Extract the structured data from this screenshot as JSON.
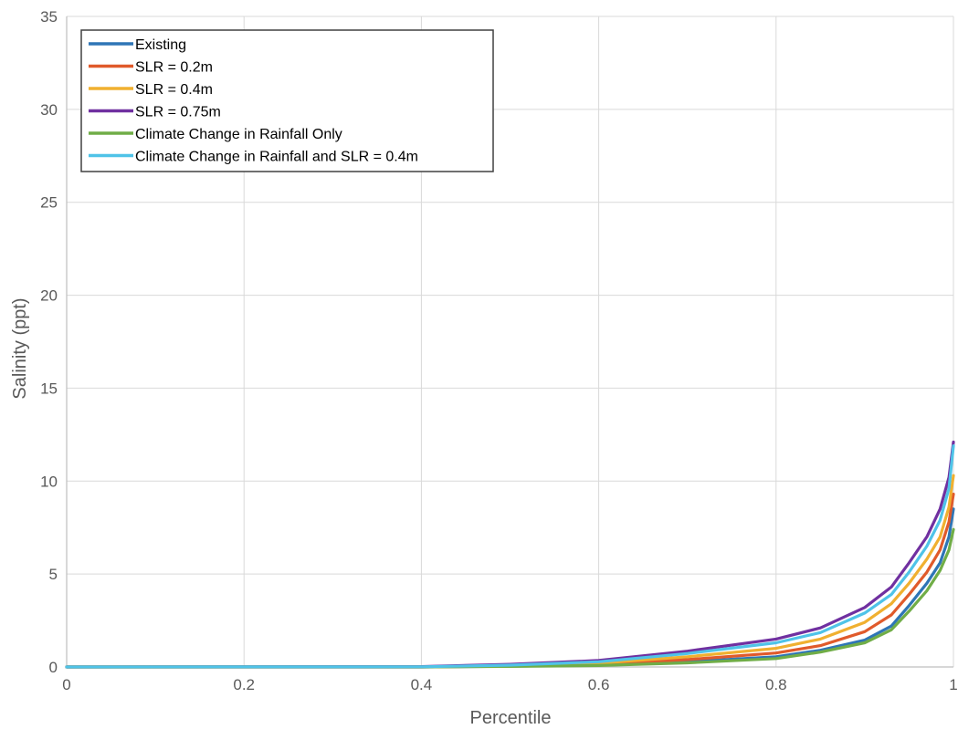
{
  "chart_data": {
    "type": "line",
    "title": "",
    "xlabel": "Percentile",
    "ylabel": "Salinity (ppt)",
    "xlim": [
      0,
      1
    ],
    "ylim": [
      0,
      35
    ],
    "x_ticks": [
      "0",
      "0.2",
      "0.4",
      "0.6",
      "0.8",
      "1"
    ],
    "y_ticks": [
      "0",
      "5",
      "10",
      "15",
      "20",
      "25",
      "30",
      "35"
    ],
    "grid": true,
    "legend_position": "top-left",
    "series": [
      {
        "name": "Existing",
        "color": "#2e75b6",
        "points": [
          [
            0,
            0
          ],
          [
            0.4,
            0
          ],
          [
            0.5,
            0.04
          ],
          [
            0.6,
            0.1
          ],
          [
            0.7,
            0.28
          ],
          [
            0.8,
            0.55
          ],
          [
            0.85,
            0.9
          ],
          [
            0.9,
            1.45
          ],
          [
            0.93,
            2.2
          ],
          [
            0.95,
            3.3
          ],
          [
            0.97,
            4.5
          ],
          [
            0.985,
            5.6
          ],
          [
            0.995,
            7.0
          ],
          [
            1.0,
            8.5
          ]
        ]
      },
      {
        "name": "SLR = 0.2m",
        "color": "#e05a2b",
        "points": [
          [
            0,
            0
          ],
          [
            0.4,
            0
          ],
          [
            0.5,
            0.06
          ],
          [
            0.6,
            0.15
          ],
          [
            0.7,
            0.4
          ],
          [
            0.8,
            0.75
          ],
          [
            0.85,
            1.15
          ],
          [
            0.9,
            1.9
          ],
          [
            0.93,
            2.8
          ],
          [
            0.95,
            3.9
          ],
          [
            0.97,
            5.1
          ],
          [
            0.985,
            6.3
          ],
          [
            0.995,
            7.8
          ],
          [
            1.0,
            9.3
          ]
        ]
      },
      {
        "name": "SLR = 0.4m",
        "color": "#f0b030",
        "points": [
          [
            0,
            0
          ],
          [
            0.4,
            0.01
          ],
          [
            0.5,
            0.08
          ],
          [
            0.6,
            0.2
          ],
          [
            0.7,
            0.55
          ],
          [
            0.8,
            1.0
          ],
          [
            0.85,
            1.5
          ],
          [
            0.9,
            2.4
          ],
          [
            0.93,
            3.4
          ],
          [
            0.95,
            4.5
          ],
          [
            0.97,
            5.8
          ],
          [
            0.985,
            7.0
          ],
          [
            0.995,
            8.6
          ],
          [
            1.0,
            10.3
          ]
        ]
      },
      {
        "name": "SLR = 0.75m",
        "color": "#7030a0",
        "points": [
          [
            0,
            0
          ],
          [
            0.4,
            0.02
          ],
          [
            0.5,
            0.14
          ],
          [
            0.6,
            0.35
          ],
          [
            0.7,
            0.85
          ],
          [
            0.8,
            1.5
          ],
          [
            0.85,
            2.1
          ],
          [
            0.9,
            3.2
          ],
          [
            0.93,
            4.3
          ],
          [
            0.95,
            5.6
          ],
          [
            0.97,
            7.0
          ],
          [
            0.985,
            8.5
          ],
          [
            0.995,
            10.2
          ],
          [
            1.0,
            12.1
          ]
        ]
      },
      {
        "name": "Climate Change in Rainfall Only",
        "color": "#70ad47",
        "points": [
          [
            0,
            0
          ],
          [
            0.4,
            0
          ],
          [
            0.5,
            0.03
          ],
          [
            0.6,
            0.08
          ],
          [
            0.7,
            0.22
          ],
          [
            0.8,
            0.45
          ],
          [
            0.85,
            0.8
          ],
          [
            0.9,
            1.3
          ],
          [
            0.93,
            2.0
          ],
          [
            0.95,
            3.0
          ],
          [
            0.97,
            4.1
          ],
          [
            0.985,
            5.2
          ],
          [
            0.995,
            6.3
          ],
          [
            1.0,
            7.4
          ]
        ]
      },
      {
        "name": "Climate Change in Rainfall and SLR = 0.4m",
        "color": "#4fc3e8",
        "points": [
          [
            0,
            0
          ],
          [
            0.4,
            0.01
          ],
          [
            0.5,
            0.1
          ],
          [
            0.6,
            0.28
          ],
          [
            0.7,
            0.72
          ],
          [
            0.8,
            1.3
          ],
          [
            0.85,
            1.85
          ],
          [
            0.9,
            2.9
          ],
          [
            0.93,
            3.9
          ],
          [
            0.95,
            5.1
          ],
          [
            0.97,
            6.5
          ],
          [
            0.985,
            7.9
          ],
          [
            0.995,
            9.6
          ],
          [
            1.0,
            11.9
          ]
        ]
      }
    ]
  }
}
